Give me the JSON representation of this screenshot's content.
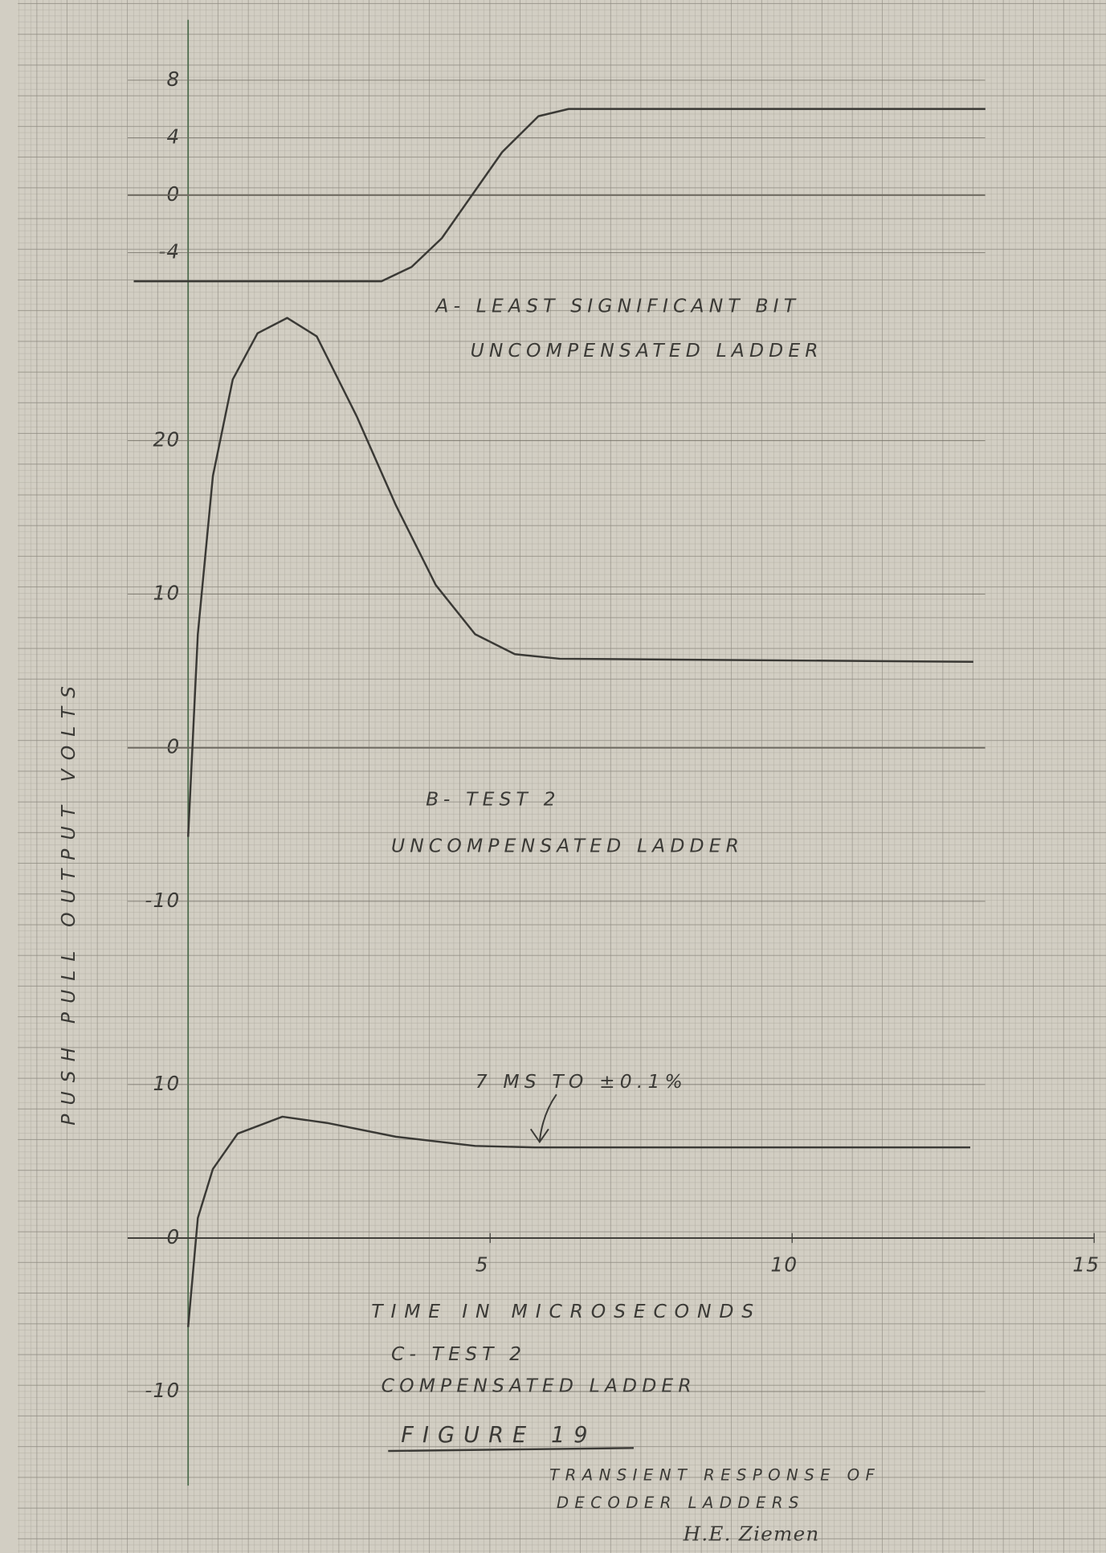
{
  "y_axis_label": "PUSH PULL OUTPUT VOLTS",
  "x_axis_label": "TIME IN MICROSECONDS",
  "figure_title": "FIGURE 19",
  "caption": [
    "TRANSIENT RESPONSE OF",
    "DECODER LADDERS"
  ],
  "signature": "H.E. Ziemen",
  "x_axis": {
    "xlim": [
      -1,
      15
    ],
    "xticks": [
      5,
      10,
      15
    ]
  },
  "chart_data": [
    {
      "type": "line",
      "labels": [
        "A- LEAST SIGNIFICANT BIT",
        "UNCOMPENSATED LADDER"
      ],
      "x": [
        -0.9,
        3.2,
        3.7,
        4.2,
        4.7,
        5.2,
        5.8,
        6.3,
        13.2
      ],
      "values": [
        -6,
        -6,
        -5,
        -3,
        0,
        3,
        5.5,
        6,
        6
      ],
      "color": "#3a3935",
      "ylim": [
        -8,
        8
      ],
      "yticks": [
        8,
        4,
        0,
        -4
      ],
      "grid": true
    },
    {
      "type": "line",
      "labels": [
        "B- TEST 2",
        "UNCOMPENSATED LADDER"
      ],
      "x": [
        0,
        0.16,
        0.41,
        0.74,
        1.15,
        1.64,
        2.13,
        2.79,
        3.44,
        4.1,
        4.75,
        5.41,
        6.15,
        13
      ],
      "values": [
        -5.8,
        7.4,
        17.7,
        24,
        27,
        28,
        26.8,
        21.6,
        15.8,
        10.6,
        7.4,
        6.1,
        5.8,
        5.6
      ],
      "color": "#3a3935",
      "ylim": [
        -10,
        30
      ],
      "yticks": [
        20,
        10,
        0,
        -10
      ],
      "grid": true
    },
    {
      "type": "line",
      "labels": [
        "C- TEST 2",
        "COMPENSATED LADDER"
      ],
      "annotation": "7 MS TO ±0.1%",
      "x": [
        0,
        0.16,
        0.41,
        0.82,
        1.56,
        2.3,
        3.44,
        4.75,
        5.74,
        12.95
      ],
      "values": [
        -5.8,
        1.3,
        4.5,
        6.8,
        7.9,
        7.5,
        6.6,
        6.0,
        5.9,
        5.9
      ],
      "color": "#3a3935",
      "ylim": [
        -10,
        10
      ],
      "yticks": [
        10,
        0,
        -10
      ],
      "grid": true
    }
  ]
}
